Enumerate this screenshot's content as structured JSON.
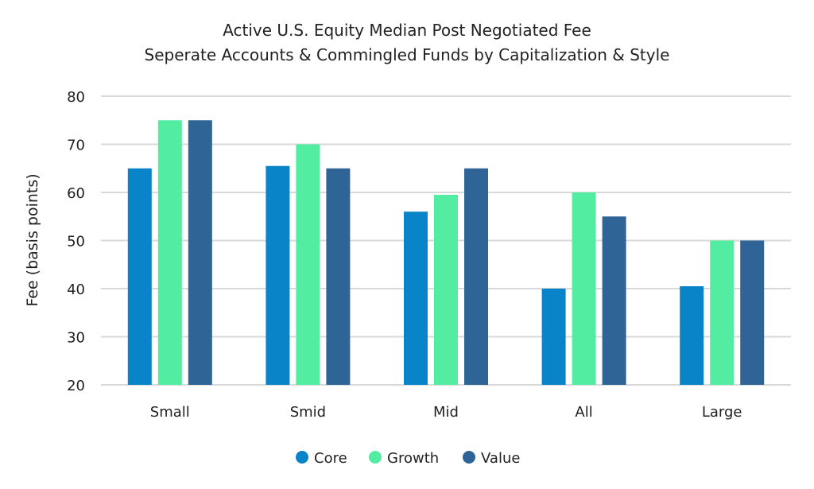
{
  "chart_data": {
    "type": "bar",
    "title": [
      "Active U.S. Equity Median Post Negotiated Fee",
      "Seperate Accounts & Commingled Funds by Capitalization & Style"
    ],
    "xlabel": "",
    "ylabel": "Fee (basis points)",
    "ylim": [
      20,
      80
    ],
    "yticks": [
      20,
      30,
      40,
      50,
      60,
      70,
      80
    ],
    "grid": true,
    "legend_placement": "bottom-center",
    "categories": [
      "Small",
      "Smid",
      "Mid",
      "All",
      "Large"
    ],
    "series": [
      {
        "name": "Core",
        "color": "#0a84c8",
        "values": [
          65,
          65.5,
          56,
          40,
          40.5
        ]
      },
      {
        "name": "Growth",
        "color": "#52eda0",
        "values": [
          75,
          70,
          59.5,
          60,
          50
        ]
      },
      {
        "name": "Value",
        "color": "#2f6497",
        "values": [
          75,
          65,
          65,
          55,
          50
        ]
      }
    ]
  }
}
